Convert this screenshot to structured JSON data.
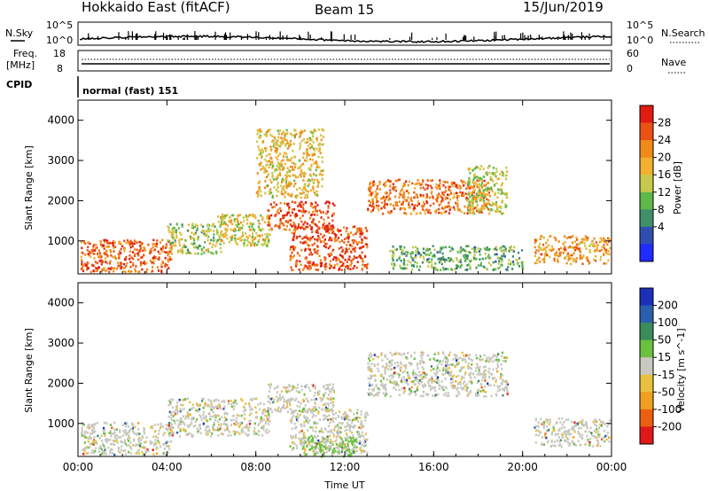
{
  "header": {
    "station": "Hokkaido East (fitACF)",
    "beam": "Beam 15",
    "date": "15/Jun/2019"
  },
  "strip_panels": {
    "nsky_label": "N.Sky",
    "nsearch_label": "N.Search",
    "log_tick_top": "10^5",
    "log_tick_bottom": "10^0",
    "freq_label": "Freq.",
    "freq_unit": "[MHz]",
    "freq_ticks": [
      "18",
      "8"
    ],
    "nave_label": "Nave",
    "nave_ticks": [
      "60",
      "0"
    ],
    "cpid_label": "CPID",
    "cpid_text": "normal (fast) 151"
  },
  "chart_data": [
    {
      "type": "heatmap",
      "name": "power",
      "ylabel": "Slant Range [km]",
      "xlabel": "",
      "x_ticks": [
        "00:00",
        "04:00",
        "08:00",
        "12:00",
        "16:00",
        "20:00",
        "00:00"
      ],
      "y_ticks": [
        "1000",
        "2000",
        "3000",
        "4000"
      ],
      "xlim_hours": [
        0,
        24
      ],
      "ylim_km": [
        180,
        4500
      ],
      "colorbar": {
        "label": "Power [dB]",
        "ticks": [
          "4",
          "8",
          "12",
          "16",
          "20",
          "24",
          "28"
        ],
        "colors": [
          "#1f2bff",
          "#2f4fb0",
          "#3f8f68",
          "#5fb84a",
          "#c6c94a",
          "#f1b030",
          "#f08a1a",
          "#ea5214",
          "#e01c10"
        ]
      },
      "regions": [
        {
          "t0": 0.1,
          "t1": 4.2,
          "r0": 250,
          "r1": 1050,
          "level": 0.85
        },
        {
          "t0": 4.0,
          "t1": 6.5,
          "r0": 700,
          "r1": 1450,
          "level": 0.45
        },
        {
          "t0": 6.2,
          "t1": 8.6,
          "r0": 900,
          "r1": 1700,
          "level": 0.55
        },
        {
          "t0": 8.5,
          "t1": 11.5,
          "r0": 1300,
          "r1": 2000,
          "level": 0.9
        },
        {
          "t0": 9.5,
          "t1": 13.0,
          "r0": 300,
          "r1": 1400,
          "level": 0.9
        },
        {
          "t0": 8.0,
          "t1": 11.0,
          "r0": 2100,
          "r1": 3800,
          "level": 0.6
        },
        {
          "t0": 13.0,
          "t1": 18.5,
          "r0": 1700,
          "r1": 2550,
          "level": 0.8
        },
        {
          "t0": 17.5,
          "t1": 19.3,
          "r0": 1700,
          "r1": 2900,
          "level": 0.5
        },
        {
          "t0": 20.5,
          "t1": 23.9,
          "r0": 450,
          "r1": 1150,
          "level": 0.7
        },
        {
          "t0": 14.0,
          "t1": 20.0,
          "r0": 300,
          "r1": 900,
          "level": 0.35
        }
      ]
    },
    {
      "type": "heatmap",
      "name": "velocity",
      "ylabel": "Slant Range [km]",
      "xlabel": "Time UT",
      "x_ticks": [
        "00:00",
        "04:00",
        "08:00",
        "12:00",
        "16:00",
        "20:00",
        "00:00"
      ],
      "y_ticks": [
        "1000",
        "2000",
        "3000",
        "4000"
      ],
      "xlim_hours": [
        0,
        24
      ],
      "ylim_km": [
        180,
        4500
      ],
      "colorbar": {
        "label": "Velocity [m s^-1]",
        "ticks": [
          "200",
          "100",
          "50",
          "15",
          "-15",
          "-50",
          "-100",
          "-200"
        ],
        "colors": [
          "#1c2fb8",
          "#2b5fae",
          "#3a8c5a",
          "#6bc040",
          "#c8c8c0",
          "#e8c040",
          "#f0a020",
          "#ea6010",
          "#e01818"
        ]
      },
      "regions": [
        {
          "t0": 0.1,
          "t1": 4.2,
          "r0": 250,
          "r1": 1050,
          "level": 0.5
        },
        {
          "t0": 4.0,
          "t1": 8.6,
          "r0": 700,
          "r1": 1650,
          "level": 0.5
        },
        {
          "t0": 8.5,
          "t1": 11.5,
          "r0": 1300,
          "r1": 2000,
          "level": 0.5
        },
        {
          "t0": 9.5,
          "t1": 13.0,
          "r0": 300,
          "r1": 1400,
          "level": 0.5
        },
        {
          "t0": 13.0,
          "t1": 19.3,
          "r0": 1700,
          "r1": 2800,
          "level": 0.5
        },
        {
          "t0": 20.5,
          "t1": 23.9,
          "r0": 450,
          "r1": 1150,
          "level": 0.5
        },
        {
          "t0": 10.0,
          "t1": 12.5,
          "r0": 200,
          "r1": 700,
          "level": 0.7
        }
      ]
    }
  ]
}
